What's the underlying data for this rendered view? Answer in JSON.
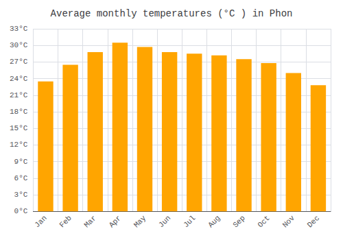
{
  "chart_data": {
    "type": "bar",
    "title": "Average monthly temperatures (°C ) in Phon",
    "categories": [
      "Jan",
      "Feb",
      "Mar",
      "Apr",
      "May",
      "Jun",
      "Jul",
      "Aug",
      "Sep",
      "Oct",
      "Nov",
      "Dec"
    ],
    "values": [
      23.5,
      26.5,
      28.8,
      30.5,
      29.7,
      28.8,
      28.5,
      28.2,
      27.5,
      26.8,
      25.0,
      22.8
    ],
    "color": "#FFA500",
    "ylim": [
      0,
      33
    ],
    "yticks": [
      {
        "value": 0,
        "label": "0°C"
      },
      {
        "value": 3,
        "label": "3°C"
      },
      {
        "value": 6,
        "label": "6°C"
      },
      {
        "value": 9,
        "label": "9°C"
      },
      {
        "value": 12,
        "label": "12°C"
      },
      {
        "value": 15,
        "label": "15°C"
      },
      {
        "value": 18,
        "label": "18°C"
      },
      {
        "value": 21,
        "label": "21°C"
      },
      {
        "value": 24,
        "label": "24°C"
      },
      {
        "value": 27,
        "label": "27°C"
      },
      {
        "value": 30,
        "label": "30°C"
      },
      {
        "value": 33,
        "label": "33°C"
      }
    ],
    "grid": true
  }
}
